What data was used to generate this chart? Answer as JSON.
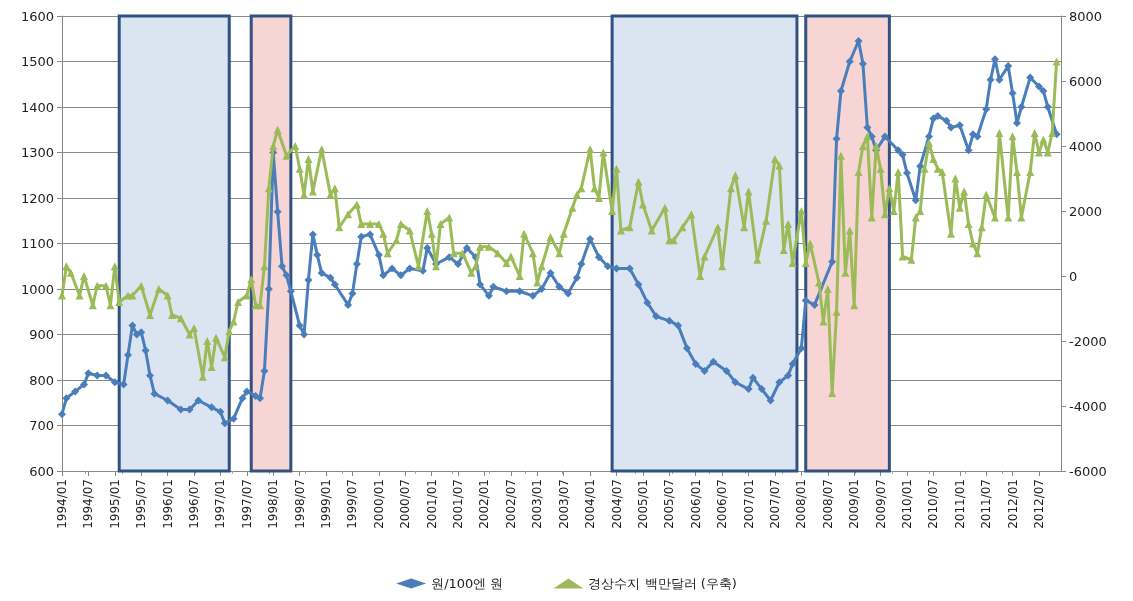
{
  "chart_data": {
    "type": "line",
    "series": [
      {
        "name": "원/100엔 원",
        "color": "#4a7ebb",
        "marker": "diamond",
        "axis": "y",
        "x": [
          "1994-01",
          "1994-02",
          "1994-04",
          "1994-06",
          "1994-07",
          "1994-09",
          "1994-11",
          "1995-01",
          "1995-03",
          "1995-04",
          "1995-05",
          "1995-06",
          "1995-07",
          "1995-08",
          "1995-09",
          "1995-10",
          "1996-01",
          "1996-04",
          "1996-06",
          "1996-08",
          "1996-11",
          "1997-01",
          "1997-02",
          "1997-04",
          "1997-06",
          "1997-07",
          "1997-09",
          "1997-10",
          "1997-11",
          "1997-12",
          "1998-01",
          "1998-02",
          "1998-03",
          "1998-04",
          "1998-05",
          "1998-07",
          "1998-08",
          "1998-09",
          "1998-10",
          "1998-11",
          "1998-12",
          "1999-02",
          "1999-03",
          "1999-06",
          "1999-07",
          "1999-08",
          "1999-09",
          "1999-11",
          "2000-01",
          "2000-02",
          "2000-04",
          "2000-06",
          "2000-08",
          "2000-11",
          "2000-12",
          "2001-02",
          "2001-05",
          "2001-07",
          "2001-09",
          "2001-11",
          "2001-12",
          "2002-02",
          "2002-03",
          "2002-06",
          "2002-09",
          "2002-12",
          "2003-02",
          "2003-04",
          "2003-06",
          "2003-08",
          "2003-10",
          "2003-11",
          "2004-01",
          "2004-03",
          "2004-05",
          "2004-07",
          "2004-10",
          "2004-12",
          "2005-02",
          "2005-04",
          "2005-07",
          "2005-09",
          "2005-11",
          "2006-01",
          "2006-03",
          "2006-05",
          "2006-08",
          "2006-10",
          "2007-01",
          "2007-02",
          "2007-04",
          "2007-06",
          "2007-08",
          "2007-10",
          "2007-11",
          "2008-01",
          "2008-02",
          "2008-04",
          "2008-08",
          "2008-09",
          "2008-10",
          "2008-12",
          "2009-02",
          "2009-03",
          "2009-04",
          "2009-05",
          "2009-06",
          "2009-08",
          "2009-11",
          "2009-12",
          "2010-01",
          "2010-03",
          "2010-04",
          "2010-06",
          "2010-07",
          "2010-08",
          "2010-10",
          "2010-11",
          "2011-01",
          "2011-03",
          "2011-04",
          "2011-05",
          "2011-07",
          "2011-08",
          "2011-09",
          "2011-10",
          "2011-12",
          "2012-01",
          "2012-02",
          "2012-03",
          "2012-05",
          "2012-07",
          "2012-08",
          "2012-09",
          "2012-11"
        ],
        "values": [
          725,
          760,
          775,
          790,
          815,
          810,
          810,
          795,
          790,
          855,
          920,
          900,
          905,
          865,
          810,
          770,
          755,
          735,
          735,
          755,
          740,
          730,
          705,
          715,
          760,
          775,
          765,
          760,
          820,
          1000,
          1300,
          1170,
          1050,
          1030,
          995,
          920,
          900,
          1020,
          1120,
          1075,
          1035,
          1025,
          1010,
          965,
          990,
          1055,
          1115,
          1120,
          1075,
          1030,
          1045,
          1030,
          1045,
          1040,
          1090,
          1055,
          1070,
          1055,
          1090,
          1070,
          1010,
          985,
          1005,
          995,
          995,
          985,
          1000,
          1035,
          1005,
          990,
          1025,
          1055,
          1110,
          1070,
          1050,
          1045,
          1045,
          1010,
          970,
          940,
          930,
          920,
          870,
          835,
          820,
          840,
          820,
          795,
          780,
          805,
          780,
          755,
          795,
          810,
          835,
          870,
          975,
          965,
          1060,
          1330,
          1435,
          1500,
          1545,
          1495,
          1355,
          1335,
          1305,
          1335,
          1305,
          1295,
          1255,
          1195,
          1270,
          1335,
          1375,
          1380,
          1370,
          1355,
          1360,
          1305,
          1340,
          1335,
          1395,
          1460,
          1505,
          1460,
          1490,
          1430,
          1365,
          1400,
          1465,
          1445,
          1435,
          1400,
          1340
        ]
      },
      {
        "name": "경상수지 백만달러 (우축)",
        "color": "#9bbb59",
        "marker": "triangle",
        "axis": "y2",
        "x": [
          "1994-01",
          "1994-02",
          "1994-03",
          "1994-05",
          "1994-06",
          "1994-08",
          "1994-09",
          "1994-11",
          "1994-12",
          "1995-01",
          "1995-02",
          "1995-04",
          "1995-05",
          "1995-07",
          "1995-09",
          "1995-11",
          "1996-01",
          "1996-02",
          "1996-04",
          "1996-06",
          "1996-07",
          "1996-09",
          "1996-10",
          "1996-11",
          "1996-12",
          "1997-02",
          "1997-03",
          "1997-04",
          "1997-05",
          "1997-07",
          "1997-08",
          "1997-09",
          "1997-10",
          "1997-11",
          "1997-12",
          "1998-01",
          "1998-02",
          "1998-04",
          "1998-06",
          "1998-07",
          "1998-08",
          "1998-09",
          "1998-10",
          "1998-12",
          "1999-02",
          "1999-03",
          "1999-04",
          "1999-06",
          "1999-08",
          "1999-09",
          "1999-11",
          "2000-01",
          "2000-02",
          "2000-03",
          "2000-05",
          "2000-06",
          "2000-08",
          "2000-10",
          "2000-12",
          "2001-01",
          "2001-02",
          "2001-03",
          "2001-05",
          "2001-06",
          "2001-08",
          "2001-10",
          "2001-11",
          "2001-12",
          "2002-02",
          "2002-04",
          "2002-06",
          "2002-07",
          "2002-09",
          "2002-10",
          "2002-12",
          "2003-01",
          "2003-02",
          "2003-04",
          "2003-06",
          "2003-07",
          "2003-09",
          "2003-10",
          "2003-11",
          "2004-01",
          "2004-02",
          "2004-03",
          "2004-04",
          "2004-06",
          "2004-07",
          "2004-08",
          "2004-10",
          "2004-12",
          "2005-01",
          "2005-03",
          "2005-06",
          "2005-07",
          "2005-08",
          "2005-10",
          "2005-12",
          "2006-02",
          "2006-03",
          "2006-06",
          "2006-07",
          "2006-09",
          "2006-10",
          "2006-12",
          "2007-01",
          "2007-03",
          "2007-05",
          "2007-07",
          "2007-08",
          "2007-09",
          "2007-10",
          "2007-11",
          "2008-01",
          "2008-02",
          "2008-03",
          "2008-05",
          "2008-06",
          "2008-07",
          "2008-08",
          "2008-09",
          "2008-10",
          "2008-11",
          "2008-12",
          "2009-01",
          "2009-02",
          "2009-03",
          "2009-04",
          "2009-05",
          "2009-06",
          "2009-07",
          "2009-08",
          "2009-09",
          "2009-10",
          "2009-11",
          "2009-12",
          "2010-02",
          "2010-03",
          "2010-04",
          "2010-05",
          "2010-06",
          "2010-07",
          "2010-08",
          "2010-09",
          "2010-11",
          "2010-12",
          "2011-01",
          "2011-02",
          "2011-03",
          "2011-04",
          "2011-05",
          "2011-06",
          "2011-07",
          "2011-09",
          "2011-10",
          "2011-12",
          "2012-01",
          "2012-02",
          "2012-03",
          "2012-05",
          "2012-06",
          "2012-07",
          "2012-08",
          "2012-09",
          "2012-10",
          "2012-11"
        ],
        "values": [
          -600,
          300,
          100,
          -600,
          0,
          -900,
          -300,
          -300,
          -900,
          300,
          -800,
          -600,
          -600,
          -300,
          -1200,
          -400,
          -600,
          -1200,
          -1300,
          -1800,
          -1600,
          -3100,
          -2000,
          -2800,
          -1900,
          -2500,
          -1700,
          -1400,
          -800,
          -600,
          -100,
          -900,
          -900,
          300,
          2700,
          4000,
          4500,
          3700,
          4000,
          3300,
          2500,
          3600,
          2600,
          3900,
          2500,
          2700,
          1500,
          1900,
          2200,
          1600,
          1600,
          1600,
          1300,
          700,
          1100,
          1600,
          1400,
          300,
          2000,
          1300,
          300,
          1600,
          1800,
          700,
          700,
          100,
          300,
          900,
          900,
          700,
          400,
          600,
          0,
          1300,
          700,
          -200,
          300,
          1200,
          700,
          1300,
          2100,
          2500,
          2700,
          3900,
          2700,
          2400,
          3800,
          2000,
          3300,
          1400,
          1500,
          2900,
          2200,
          1400,
          2100,
          1100,
          1100,
          1500,
          1900,
          0,
          600,
          1500,
          300,
          2700,
          3100,
          1500,
          2600,
          500,
          1700,
          3600,
          3400,
          800,
          1600,
          400,
          2000,
          400,
          1000,
          -200,
          -1400,
          -400,
          -3600,
          -1100,
          3700,
          100,
          1400,
          -900,
          3200,
          4000,
          4300,
          1800,
          4000,
          3300,
          1900,
          2700,
          2000,
          3200,
          600,
          500,
          1800,
          2000,
          3300,
          4100,
          3600,
          3300,
          3200,
          1300,
          3000,
          2100,
          2600,
          1600,
          1000,
          700,
          1500,
          2500,
          1800,
          4400,
          1800,
          4300,
          3200,
          1800,
          3200,
          4400,
          3800,
          4200,
          3800,
          4400,
          6600
        ]
      }
    ],
    "xlim": [
      "1994-01",
      "2012-12"
    ],
    "xticks": [
      {
        "value": "1994-01",
        "label": "1994/01"
      },
      {
        "value": "1994-07",
        "label": "1994/07"
      },
      {
        "value": "1995-01",
        "label": "1995/01"
      },
      {
        "value": "1995-07",
        "label": "1995/07"
      },
      {
        "value": "1996-01",
        "label": "1996/01"
      },
      {
        "value": "1996-07",
        "label": "1996/07"
      },
      {
        "value": "1997-01",
        "label": "1997/01"
      },
      {
        "value": "1997-07",
        "label": "1997/07"
      },
      {
        "value": "1998-01",
        "label": "1998/01"
      },
      {
        "value": "1998-07",
        "label": "1998/07"
      },
      {
        "value": "1999-01",
        "label": "1999/01"
      },
      {
        "value": "1999-07",
        "label": "1999/07"
      },
      {
        "value": "2000-01",
        "label": "2000/01"
      },
      {
        "value": "2000-07",
        "label": "2000/07"
      },
      {
        "value": "2001-01",
        "label": "2001/01"
      },
      {
        "value": "2001-07",
        "label": "2001/07"
      },
      {
        "value": "2002-01",
        "label": "2002/01"
      },
      {
        "value": "2002-07",
        "label": "2002/07"
      },
      {
        "value": "2003-01",
        "label": "2003/01"
      },
      {
        "value": "2003-07",
        "label": "2003/07"
      },
      {
        "value": "2004-01",
        "label": "2004/01"
      },
      {
        "value": "2004-07",
        "label": "2004/07"
      },
      {
        "value": "2005-01",
        "label": "2005/01"
      },
      {
        "value": "2005-07",
        "label": "2005/07"
      },
      {
        "value": "2006-01",
        "label": "2006/01"
      },
      {
        "value": "2006-07",
        "label": "2006/07"
      },
      {
        "value": "2007-01",
        "label": "2007/01"
      },
      {
        "value": "2007-07",
        "label": "2007/07"
      },
      {
        "value": "2008-01",
        "label": "2008/01"
      },
      {
        "value": "2008-07",
        "label": "2008/07"
      },
      {
        "value": "2009-01",
        "label": "2009/01"
      },
      {
        "value": "2009-07",
        "label": "2009/07"
      },
      {
        "value": "2010-01",
        "label": "2010/01"
      },
      {
        "value": "2010-07",
        "label": "2010/07"
      },
      {
        "value": "2011-01",
        "label": "2011/01"
      },
      {
        "value": "2011-07",
        "label": "2011/07"
      },
      {
        "value": "2012-01",
        "label": "2012/01"
      },
      {
        "value": "2012-07",
        "label": "2012/07"
      }
    ],
    "ylim": [
      600,
      1600
    ],
    "yticks": [
      600,
      700,
      800,
      900,
      1000,
      1100,
      1200,
      1300,
      1400,
      1500,
      1600
    ],
    "y2lim": [
      -6000,
      8000
    ],
    "y2ticks": [
      -6000,
      -4000,
      -2000,
      0,
      2000,
      4000,
      6000,
      8000
    ],
    "bands": [
      {
        "axis": "x",
        "from": "1995-02",
        "to": "1997-03",
        "color": "#dbe5f1"
      },
      {
        "axis": "x",
        "from": "1997-08",
        "to": "1998-05",
        "color": "#f8d5d5"
      },
      {
        "axis": "x",
        "from": "2004-06",
        "to": "2007-12",
        "color": "#dbe5f1"
      },
      {
        "axis": "x",
        "from": "2008-02",
        "to": "2009-09",
        "color": "#f8d5d5"
      }
    ],
    "grid": "y",
    "legend": "bottom",
    "line_style": "solid"
  }
}
